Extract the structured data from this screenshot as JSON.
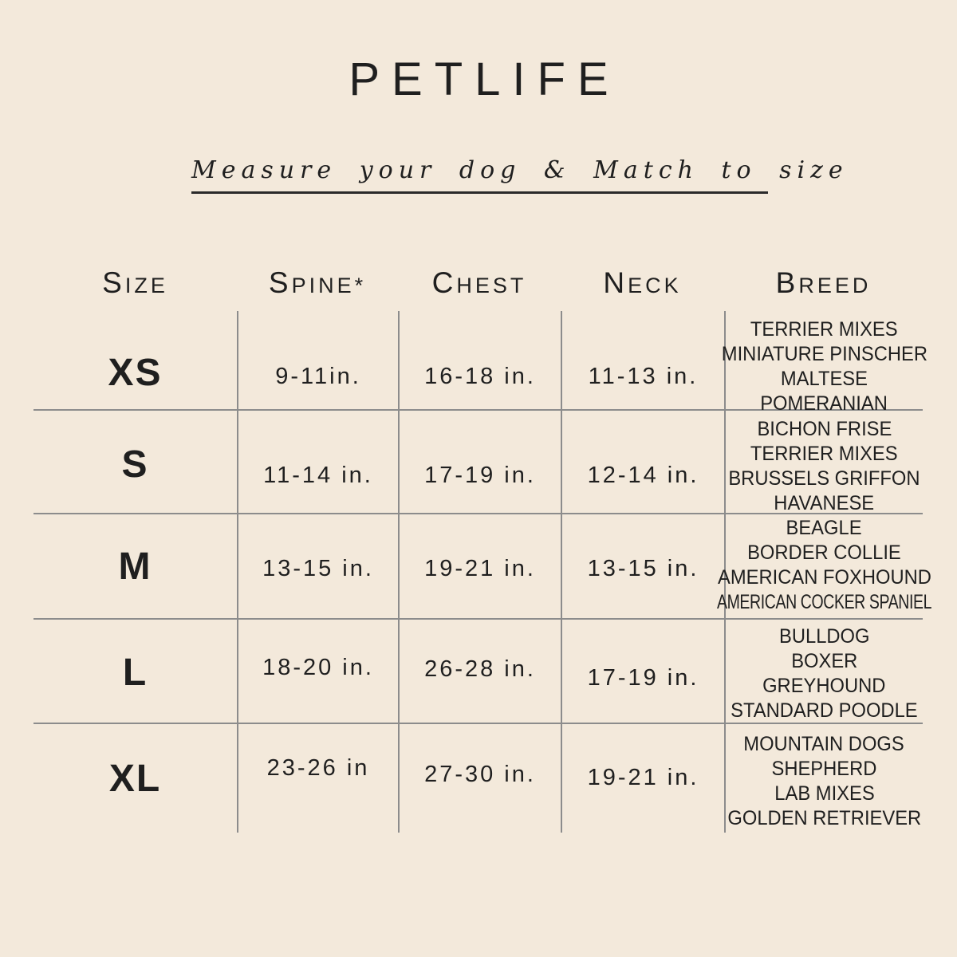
{
  "colors": {
    "background": "#F3E9DB",
    "text": "#1F1F1F",
    "line": "#8C8C8C",
    "rule": "#2A2A2A"
  },
  "chart_data": {
    "type": "table",
    "title": "PETLIFE",
    "subtitle": "Measure your dog & Match to size",
    "columns": [
      "Size",
      "Spine*",
      "Chest",
      "Neck",
      "Breed"
    ],
    "rows": [
      {
        "size": "XS",
        "spine": "9-11in.",
        "chest": "16-18 in.",
        "neck": "11-13 in.",
        "breeds": [
          "TERRIER MIXES",
          "MINIATURE PINSCHER",
          "MALTESE",
          "POMERANIAN"
        ]
      },
      {
        "size": "S",
        "spine": "11-14 in.",
        "chest": "17-19 in.",
        "neck": "12-14 in.",
        "breeds": [
          "BICHON FRISE",
          "TERRIER MIXES",
          "BRUSSELS GRIFFON",
          "HAVANESE"
        ]
      },
      {
        "size": "M",
        "spine": "13-15 in.",
        "chest": "19-21 in.",
        "neck": "13-15 in.",
        "breeds": [
          "BEAGLE",
          "BORDER COLLIE",
          "AMERICAN FOXHOUND",
          "AMERICAN COCKER SPANIEL"
        ]
      },
      {
        "size": "L",
        "spine": "18-20 in.",
        "chest": "26-28 in.",
        "neck": "17-19 in.",
        "breeds": [
          "BULLDOG",
          "BOXER",
          "GREYHOUND",
          "STANDARD POODLE"
        ]
      },
      {
        "size": "XL",
        "spine": "23-26 in",
        "chest": "27-30 in.",
        "neck": "19-21 in.",
        "breeds": [
          "MOUNTAIN DOGS",
          "SHEPHERD",
          "LAB MIXES",
          "GOLDEN RETRIEVER"
        ]
      }
    ]
  }
}
